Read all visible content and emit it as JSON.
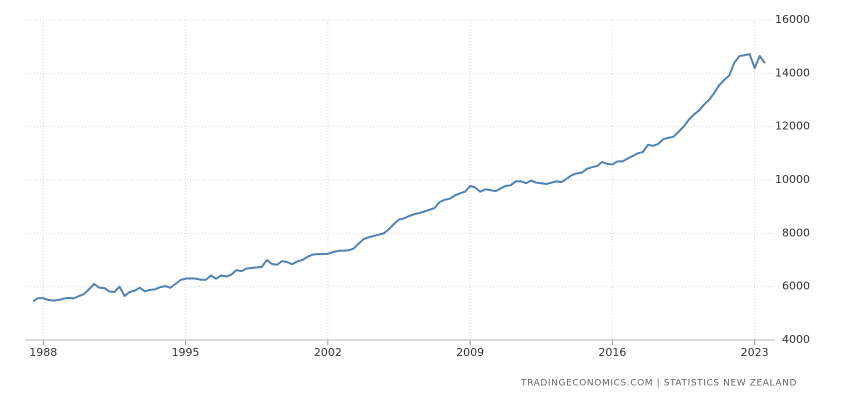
{
  "chart_data": {
    "type": "line",
    "source": "TRADINGECONOMICS.COM | STATISTICS NEW ZEALAND",
    "x": [
      1987.5,
      1987.75,
      1988,
      1988.25,
      1988.5,
      1988.75,
      1989,
      1989.25,
      1989.5,
      1989.75,
      1990,
      1990.25,
      1990.5,
      1990.75,
      1991,
      1991.25,
      1991.5,
      1991.75,
      1992,
      1992.25,
      1992.5,
      1992.75,
      1993,
      1993.25,
      1993.5,
      1993.75,
      1994,
      1994.25,
      1994.5,
      1994.75,
      1995,
      1995.25,
      1995.5,
      1995.75,
      1996,
      1996.25,
      1996.5,
      1996.75,
      1997,
      1997.25,
      1997.5,
      1997.75,
      1998,
      1998.25,
      1998.5,
      1998.75,
      1999,
      1999.25,
      1999.5,
      1999.75,
      2000,
      2000.25,
      2000.5,
      2000.75,
      2001,
      2001.25,
      2001.5,
      2001.75,
      2002,
      2002.25,
      2002.5,
      2002.75,
      2003,
      2003.25,
      2003.5,
      2003.75,
      2004,
      2004.25,
      2004.5,
      2004.75,
      2005,
      2005.25,
      2005.5,
      2005.75,
      2006,
      2006.25,
      2006.5,
      2006.75,
      2007,
      2007.25,
      2007.5,
      2007.75,
      2008,
      2008.25,
      2008.5,
      2008.75,
      2009,
      2009.25,
      2009.5,
      2009.75,
      2010,
      2010.25,
      2010.5,
      2010.75,
      2011,
      2011.25,
      2011.5,
      2011.75,
      2012,
      2012.25,
      2012.5,
      2012.75,
      2013,
      2013.25,
      2013.5,
      2013.75,
      2014,
      2014.25,
      2014.5,
      2014.75,
      2015,
      2015.25,
      2015.5,
      2015.75,
      2016,
      2016.25,
      2016.5,
      2016.75,
      2017,
      2017.25,
      2017.5,
      2017.75,
      2018,
      2018.25,
      2018.5,
      2018.75,
      2019,
      2019.25,
      2019.5,
      2019.75,
      2020,
      2020.25,
      2020.5,
      2020.75,
      2021,
      2021.25,
      2021.5,
      2021.75,
      2022,
      2022.25,
      2022.5,
      2022.75,
      2023,
      2023.25,
      2023.5
    ],
    "values": [
      5450,
      5570,
      5570,
      5500,
      5480,
      5500,
      5550,
      5580,
      5560,
      5650,
      5720,
      5900,
      6100,
      5960,
      5950,
      5820,
      5800,
      6000,
      5650,
      5800,
      5850,
      5960,
      5820,
      5880,
      5900,
      5980,
      6020,
      5960,
      6100,
      6250,
      6300,
      6310,
      6300,
      6260,
      6260,
      6420,
      6300,
      6420,
      6380,
      6450,
      6620,
      6580,
      6680,
      6700,
      6720,
      6740,
      7000,
      6850,
      6820,
      6960,
      6920,
      6840,
      6950,
      7000,
      7120,
      7200,
      7220,
      7220,
      7230,
      7300,
      7340,
      7350,
      7360,
      7420,
      7600,
      7780,
      7850,
      7900,
      7950,
      8000,
      8150,
      8350,
      8520,
      8560,
      8650,
      8720,
      8760,
      8820,
      8880,
      8950,
      9170,
      9260,
      9300,
      9420,
      9500,
      9560,
      9780,
      9720,
      9560,
      9650,
      9620,
      9580,
      9680,
      9780,
      9800,
      9950,
      9950,
      9880,
      9980,
      9900,
      9880,
      9850,
      9900,
      9950,
      9920,
      10050,
      10180,
      10250,
      10280,
      10420,
      10480,
      10530,
      10680,
      10600,
      10580,
      10700,
      10700,
      10800,
      10900,
      11000,
      11050,
      11320,
      11280,
      11350,
      11530,
      11580,
      11620,
      11800,
      12000,
      12250,
      12450,
      12600,
      12820,
      13000,
      13250,
      13550,
      13750,
      13920,
      14400,
      14650,
      14680,
      14720,
      14200,
      14650,
      14380
    ],
    "color": "#4f83b5",
    "xlim": [
      1987.1,
      2024.0
    ],
    "xticks": [
      1988,
      1995,
      2002,
      2009,
      2016,
      2023
    ],
    "ylim": [
      4000,
      16000
    ],
    "yticks": [
      4000,
      6000,
      8000,
      10000,
      12000,
      14000,
      16000
    ],
    "grid": true
  }
}
